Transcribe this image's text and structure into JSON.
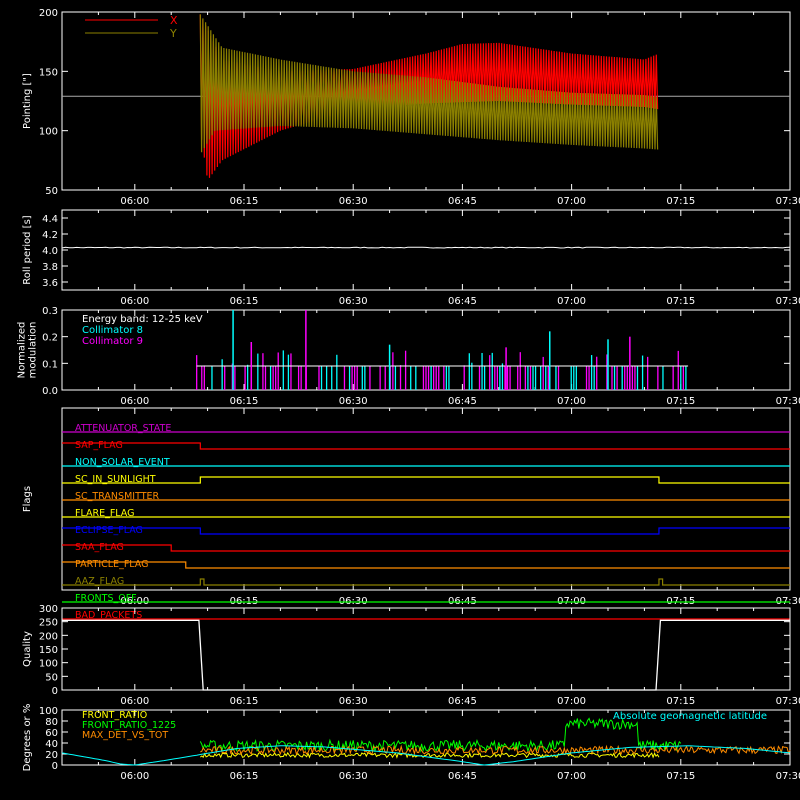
{
  "time_axis": {
    "range": [
      "05:50",
      "07:30"
    ],
    "tick_labels": [
      "06:00",
      "06:15",
      "06:30",
      "06:45",
      "07:00",
      "07:15",
      "07:30"
    ],
    "tick_minutes": [
      360,
      375,
      390,
      405,
      420,
      435,
      450
    ],
    "minor_step_minutes": 5
  },
  "colors": {
    "background": "#000000",
    "axes": "#ffffff",
    "x_red": "#ff0000",
    "y_olive": "#8b8000",
    "white": "#ffffff",
    "cyan": "#00ffff",
    "magenta": "#ff00ff",
    "yellow": "#ffff00",
    "green": "#00ff00",
    "orange": "#ff8c00",
    "blue": "#0000ff",
    "purple": "#cc00cc"
  },
  "chart_data": [
    {
      "id": "pointing",
      "type": "line",
      "ylabel": "Pointing [\"]",
      "ylim": [
        50,
        200
      ],
      "yticks": [
        50,
        100,
        150,
        200
      ],
      "reference_line": 129,
      "series": [
        {
          "name": "X",
          "color": "#ff0000",
          "start": "06:09",
          "end": "07:12",
          "upper": [
            [
              369,
              198
            ],
            [
              372,
              160
            ],
            [
              380,
              150
            ],
            [
              390,
              152
            ],
            [
              400,
              165
            ],
            [
              405,
              173
            ],
            [
              410,
              174
            ],
            [
              420,
              165
            ],
            [
              430,
              160
            ],
            [
              432,
              165
            ]
          ],
          "lower": [
            [
              369,
              100
            ],
            [
              370,
              58
            ],
            [
              372,
              75
            ],
            [
              380,
              100
            ],
            [
              390,
              118
            ],
            [
              400,
              123
            ],
            [
              410,
              125
            ],
            [
              420,
              122
            ],
            [
              430,
              120
            ],
            [
              432,
              118
            ]
          ]
        },
        {
          "name": "Y",
          "color": "#8b8000",
          "start": "06:09",
          "end": "07:12",
          "upper": [
            [
              369,
              198
            ],
            [
              372,
              170
            ],
            [
              380,
              160
            ],
            [
              390,
              150
            ],
            [
              400,
              145
            ],
            [
              410,
              137
            ],
            [
              420,
              132
            ],
            [
              430,
              130
            ],
            [
              432,
              128
            ]
          ],
          "lower": [
            [
              369,
              80
            ],
            [
              371,
              100
            ],
            [
              380,
              104
            ],
            [
              390,
              102
            ],
            [
              400,
              97
            ],
            [
              410,
              92
            ],
            [
              420,
              88
            ],
            [
              430,
              85
            ],
            [
              432,
              84
            ]
          ]
        }
      ]
    },
    {
      "id": "roll",
      "type": "line",
      "ylabel": "Roll period [s]",
      "ylim": [
        3.5,
        4.5
      ],
      "yticks": [
        3.6,
        3.8,
        4.0,
        4.2,
        4.4
      ],
      "series": [
        {
          "value": 4.03,
          "noise": 0.01,
          "color": "#ffffff"
        }
      ]
    },
    {
      "id": "modulation",
      "type": "bar",
      "ylabel": "Normalized modulation",
      "ylim": [
        0,
        0.3
      ],
      "yticks": [
        0.0,
        0.1,
        0.2,
        0.3
      ],
      "legend": [
        "Energy band: 12-25 keV",
        "Collimator 8",
        "Collimator 9"
      ],
      "legend_colors": [
        "#ffffff",
        "#00ffff",
        "#ff00ff"
      ],
      "baseline": 0.09,
      "active_range": [
        "06:08",
        "07:16"
      ],
      "spikes": [
        {
          "t": 373.5,
          "v": 0.3,
          "c": "#00ffff"
        },
        {
          "t": 383.5,
          "v": 0.3,
          "c": "#ff00ff"
        },
        {
          "t": 376.0,
          "v": 0.18,
          "c": "#ff00ff"
        },
        {
          "t": 395.0,
          "v": 0.17,
          "c": "#00ffff"
        },
        {
          "t": 417.0,
          "v": 0.22,
          "c": "#00ffff"
        },
        {
          "t": 428.0,
          "v": 0.2,
          "c": "#ff00ff"
        },
        {
          "t": 425.0,
          "v": 0.19,
          "c": "#00ffff"
        },
        {
          "t": 411.0,
          "v": 0.16,
          "c": "#ff00ff"
        }
      ]
    },
    {
      "id": "flags",
      "type": "line",
      "ylabel": "Flags",
      "rows": [
        {
          "label": "ATTENUATOR_STATE",
          "color": "#cc00cc",
          "steps": [
            [
              350,
              0
            ]
          ]
        },
        {
          "label": "SAP_FLAG",
          "color": "#ff0000",
          "steps": [
            [
              350,
              1
            ],
            [
              369,
              0
            ]
          ]
        },
        {
          "label": "NON_SOLAR_EVENT",
          "color": "#00ffff",
          "steps": [
            [
              350,
              0
            ]
          ]
        },
        {
          "label": "SC_IN_SUNLIGHT",
          "color": "#ffff00",
          "steps": [
            [
              350,
              0
            ],
            [
              369,
              1
            ],
            [
              432,
              0
            ]
          ]
        },
        {
          "label": "SC_TRANSMITTER",
          "color": "#ff8c00",
          "steps": [
            [
              350,
              0
            ]
          ]
        },
        {
          "label": "FLARE_FLAG",
          "color": "#ffff00",
          "steps": [
            [
              350,
              0
            ]
          ]
        },
        {
          "label": "ECLIPSE_FLAG",
          "color": "#0000ff",
          "steps": [
            [
              350,
              1
            ],
            [
              369,
              0
            ],
            [
              432,
              1
            ]
          ]
        },
        {
          "label": "SAA_FLAG",
          "color": "#ff0000",
          "steps": [
            [
              350,
              1
            ],
            [
              365,
              0
            ]
          ]
        },
        {
          "label": "PARTICLE_FLAG",
          "color": "#ff8c00",
          "steps": [
            [
              350,
              1
            ],
            [
              367,
              0
            ]
          ]
        },
        {
          "label": "AAZ_FLAG",
          "color": "#8b8000",
          "steps": [
            [
              350,
              0
            ],
            [
              369,
              1
            ],
            [
              369.5,
              0
            ],
            [
              432,
              1
            ],
            [
              432.5,
              0
            ]
          ]
        },
        {
          "label": "FRONTS_OFF",
          "color": "#00ff00",
          "steps": [
            [
              350,
              0
            ]
          ]
        },
        {
          "label": "BAD_PACKETS",
          "color": "#ff0000",
          "steps": [
            [
              350,
              0
            ]
          ]
        }
      ]
    },
    {
      "id": "quality",
      "type": "line",
      "ylabel": "Quality",
      "ylim": [
        0,
        300
      ],
      "yticks": [
        0,
        50,
        100,
        150,
        200,
        250,
        300
      ],
      "series": [
        {
          "color": "#ffffff",
          "points": [
            [
              350,
              255
            ],
            [
              368.8,
              255
            ],
            [
              369.4,
              0
            ],
            [
              431.6,
              0
            ],
            [
              432.2,
              255
            ],
            [
              450,
              255
            ]
          ]
        }
      ]
    },
    {
      "id": "geo",
      "type": "line",
      "ylabel": "Degrees or %",
      "ylim": [
        0,
        100
      ],
      "yticks": [
        0,
        20,
        40,
        60,
        80,
        100
      ],
      "legend": [
        "FRONT_RATIO",
        "FRONT_RATIO_1225",
        "MAX_DET_VS_TOT"
      ],
      "legend_colors": [
        "#ffff00",
        "#00ff00",
        "#ff8c00"
      ],
      "annotation": "Absolute geomagnetic latitude",
      "annotation_color": "#00ffff",
      "series": [
        {
          "name": "FRONT_RATIO",
          "color": "#ffff00",
          "start": 369,
          "end": 432,
          "level": 18,
          "noise": 4
        },
        {
          "name": "FRONT_RATIO_1225",
          "color": "#00ff00",
          "start": 369,
          "end": 435,
          "level": 35,
          "noise": 10,
          "bump": [
            [
              419,
              429,
              75
            ]
          ]
        },
        {
          "name": "MAX_DET_VS_TOT",
          "color": "#ff8c00",
          "start": 369,
          "end": 450,
          "level": 27,
          "noise": 7
        },
        {
          "name": "Absolute geomagnetic latitude",
          "color": "#00ffff",
          "points": [
            [
              350,
              22
            ],
            [
              356,
              8
            ],
            [
              358,
              2
            ],
            [
              360,
              0
            ],
            [
              364,
              8
            ],
            [
              374,
              30
            ],
            [
              380,
              35
            ],
            [
              386,
              33
            ],
            [
              396,
              22
            ],
            [
              404,
              8
            ],
            [
              408,
              0
            ],
            [
              412,
              6
            ],
            [
              420,
              22
            ],
            [
              428,
              32
            ],
            [
              436,
              35
            ],
            [
              444,
              30
            ],
            [
              450,
              22
            ]
          ]
        }
      ]
    }
  ]
}
